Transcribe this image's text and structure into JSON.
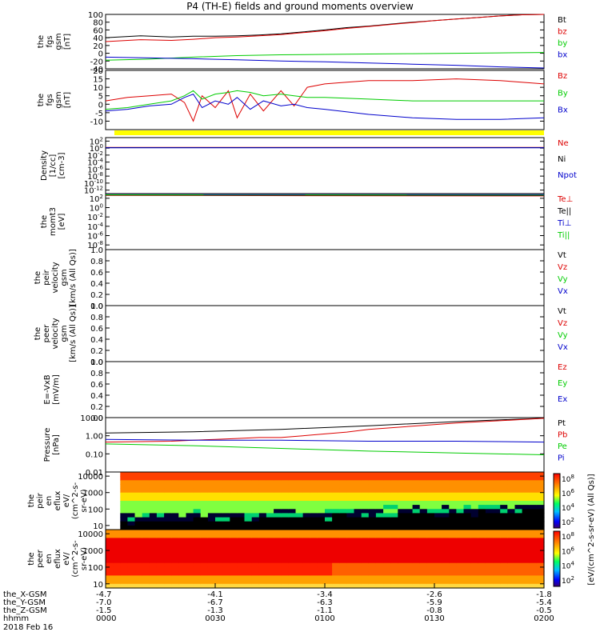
{
  "chart_data": {
    "type": "line",
    "title": "P4 (TH-E) fields and ground moments overview",
    "panels": [
      {
        "id": "fgs_gsm",
        "ylabel": [
          "the",
          "fgs",
          "gsm",
          "[nT]"
        ],
        "ylim": [
          -40,
          100
        ],
        "ticks": [
          "100",
          "80",
          "60",
          "40",
          "20",
          "0",
          "-20",
          "-40"
        ],
        "tick_values": [
          100,
          80,
          60,
          40,
          20,
          0,
          -20,
          -40
        ],
        "scale": "linear",
        "series": [
          {
            "name": "Bt",
            "color": "#000000",
            "x": [
              0,
              8,
              15,
              20,
              25,
              30,
              35,
              40,
              45,
              50,
              55,
              60,
              65,
              70,
              75,
              80,
              85,
              90,
              95,
              100
            ],
            "y": [
              40,
              45,
              42,
              44,
              44,
              45,
              47,
              50,
              55,
              60,
              66,
              70,
              75,
              80,
              84,
              88,
              92,
              96,
              99,
              100
            ]
          },
          {
            "name": "bz",
            "color": "#dd0000",
            "x": [
              0,
              8,
              15,
              20,
              25,
              30,
              35,
              40,
              45,
              50,
              55,
              60,
              65,
              70,
              75,
              80,
              85,
              90,
              95,
              100
            ],
            "y": [
              30,
              35,
              33,
              36,
              40,
              42,
              45,
              48,
              53,
              58,
              64,
              69,
              74,
              79,
              84,
              88,
              92,
              96,
              99,
              100
            ]
          },
          {
            "name": "by",
            "color": "#00cc00",
            "x": [
              0,
              10,
              20,
              30,
              40,
              50,
              60,
              70,
              80,
              90,
              100
            ],
            "y": [
              -18,
              -15,
              -10,
              -6,
              -4,
              -3,
              -2,
              -1,
              0,
              1,
              2
            ]
          },
          {
            "name": "bx",
            "color": "#0000cc",
            "x": [
              0,
              10,
              20,
              30,
              40,
              50,
              60,
              70,
              80,
              90,
              100
            ],
            "y": [
              -10,
              -12,
              -14,
              -17,
              -20,
              -22,
              -25,
              -28,
              -31,
              -35,
              -38
            ]
          }
        ]
      },
      {
        "id": "fgs_gsm_2",
        "ylabel": [
          "the",
          "fgs",
          "gsm",
          "[nT]"
        ],
        "ylim": [
          -15,
          20
        ],
        "ticks": [
          "20",
          "15",
          "10",
          "5",
          "0",
          "-5",
          "-10"
        ],
        "tick_values": [
          20,
          15,
          10,
          5,
          0,
          -5,
          -10
        ],
        "scale": "linear",
        "series": [
          {
            "name": "Bz",
            "color": "#dd0000",
            "x": [
              0,
              5,
              10,
              15,
              18,
              20,
              22,
              25,
              28,
              30,
              33,
              36,
              40,
              43,
              46,
              50,
              55,
              60,
              70,
              80,
              90,
              100
            ],
            "y": [
              2,
              4,
              5,
              6,
              1,
              -10,
              5,
              -2,
              8,
              -8,
              6,
              -4,
              8,
              -1,
              10,
              12,
              13,
              14,
              14,
              15,
              14,
              12
            ]
          },
          {
            "name": "By",
            "color": "#00cc00",
            "x": [
              0,
              5,
              10,
              15,
              18,
              20,
              22,
              25,
              28,
              30,
              33,
              36,
              40,
              43,
              46,
              50,
              60,
              70,
              80,
              90,
              100
            ],
            "y": [
              -3,
              -2,
              0,
              2,
              5,
              8,
              3,
              6,
              7,
              8,
              7,
              5,
              6,
              5,
              4,
              4,
              3,
              2,
              2,
              2,
              2
            ]
          },
          {
            "name": "Bx",
            "color": "#0000cc",
            "x": [
              0,
              5,
              10,
              15,
              18,
              20,
              22,
              25,
              28,
              30,
              33,
              36,
              40,
              43,
              46,
              50,
              60,
              70,
              80,
              90,
              100
            ],
            "y": [
              -4,
              -3,
              -1,
              0,
              4,
              6,
              -2,
              2,
              0,
              4,
              -3,
              2,
              -1,
              0,
              -2,
              -3,
              -6,
              -8,
              -9,
              -9,
              -8
            ]
          }
        ]
      },
      {
        "id": "density",
        "ylabel": [
          "Density",
          "[1/cc]",
          "[cm-3]"
        ],
        "ticks": [
          "10^2",
          "10^0",
          "10^-2",
          "10^-4",
          "10^-6",
          "10^-8",
          "10^-10",
          "10^-12"
        ],
        "tick_values": [
          2,
          0,
          -2,
          -4,
          -6,
          -8,
          -10,
          -12
        ],
        "ylim": [
          -13,
          3
        ],
        "scale": "log",
        "series": [
          {
            "name": "Ne",
            "color": "#dd0000",
            "x": [
              0,
              100
            ],
            "y": [
              0.2,
              0.2
            ]
          },
          {
            "name": "Ni",
            "color": "#000000",
            "x": [
              0,
              100
            ],
            "y": [
              0.15,
              0.15
            ]
          },
          {
            "name": "Npot",
            "color": "#0000cc",
            "x": [
              0,
              100
            ],
            "y": [
              0.1,
              0.1
            ]
          }
        ]
      },
      {
        "id": "temperature",
        "ylabel": [
          "the",
          "momt3",
          "[eV]"
        ],
        "ticks": [
          "10^2",
          "10^0",
          "10^-2",
          "10^-4",
          "10^-6",
          "10^-8"
        ],
        "tick_values": [
          2,
          0,
          -2,
          -4,
          -6,
          -8
        ],
        "ylim": [
          -9,
          3
        ],
        "scale": "log",
        "series": [
          {
            "name": "Te⊥",
            "color": "#dd0000",
            "x": [
              0,
              100
            ],
            "y": [
              2.6,
              2.5
            ]
          },
          {
            "name": "Te||",
            "color": "#000000",
            "x": [
              0,
              100
            ],
            "y": [
              2.7,
              2.6
            ]
          },
          {
            "name": "Ti⊥",
            "color": "#0000cc",
            "x": [
              0,
              100
            ],
            "y": [
              2.8,
              2.8
            ]
          },
          {
            "name": "Ti||",
            "color": "#00cc00",
            "x": [
              0,
              100
            ],
            "y": [
              2.75,
              2.7
            ]
          }
        ]
      },
      {
        "id": "peir_velocity",
        "ylabel": [
          "the",
          "peir",
          "velocity",
          "gsm",
          "[km/s (All Qs)]"
        ],
        "ylim": [
          0,
          1
        ],
        "ticks": [
          "1.0",
          "0.8",
          "0.6",
          "0.4",
          "0.2",
          "0.0"
        ],
        "tick_values": [
          1,
          0.8,
          0.6,
          0.4,
          0.2,
          0
        ],
        "scale": "linear",
        "legend": [
          [
            "Vt",
            "#000000"
          ],
          [
            "Vz",
            "#dd0000"
          ],
          [
            "Vy",
            "#00cc00"
          ],
          [
            "Vx",
            "#0000cc"
          ]
        ]
      },
      {
        "id": "peer_velocity",
        "ylabel": [
          "the",
          "peer",
          "velocity",
          "gsm",
          "[km/s (All Qs)]"
        ],
        "ylim": [
          0,
          1
        ],
        "ticks": [
          "1.0",
          "0.8",
          "0.6",
          "0.4",
          "0.2",
          "0.0"
        ],
        "tick_values": [
          1,
          0.8,
          0.6,
          0.4,
          0.2,
          0
        ],
        "scale": "linear",
        "legend": [
          [
            "Vt",
            "#000000"
          ],
          [
            "Vz",
            "#dd0000"
          ],
          [
            "Vy",
            "#00cc00"
          ],
          [
            "Vx",
            "#0000cc"
          ]
        ]
      },
      {
        "id": "efield",
        "ylabel": [
          "E=-VxB",
          "[mV/m]"
        ],
        "ylim": [
          0,
          1
        ],
        "ticks": [
          "1.0",
          "0.8",
          "0.6",
          "0.4",
          "0.2",
          "0.0"
        ],
        "tick_values": [
          1,
          0.8,
          0.6,
          0.4,
          0.2,
          0
        ],
        "scale": "linear",
        "legend": [
          [
            "Ez",
            "#dd0000"
          ],
          [
            "Ey",
            "#00cc00"
          ],
          [
            "Ex",
            "#0000cc"
          ]
        ]
      },
      {
        "id": "pressure",
        "ylabel": [
          "Pressure",
          "[nPa]"
        ],
        "ticks": [
          "10.00",
          "1.00",
          "0.10",
          "0.01"
        ],
        "tick_values": [
          1,
          0,
          -1,
          -2
        ],
        "ylim": [
          -2,
          1
        ],
        "scale": "log",
        "series": [
          {
            "name": "Pt",
            "color": "#000000",
            "x": [
              0,
              20,
              40,
              60,
              80,
              100
            ],
            "y": [
              0.15,
              0.22,
              0.35,
              0.55,
              0.78,
              0.97
            ]
          },
          {
            "name": "Pb",
            "color": "#dd0000",
            "x": [
              0,
              15,
              20,
              25,
              30,
              35,
              40,
              45,
              50,
              55,
              60,
              80,
              100
            ],
            "y": [
              -0.35,
              -0.3,
              -0.25,
              -0.2,
              -0.15,
              -0.1,
              -0.1,
              0.0,
              0.1,
              0.2,
              0.35,
              0.7,
              0.96
            ]
          },
          {
            "name": "Pe",
            "color": "#00cc00",
            "x": [
              0,
              20,
              40,
              60,
              80,
              100
            ],
            "y": [
              -0.45,
              -0.55,
              -0.7,
              -0.85,
              -0.95,
              -1.05
            ]
          },
          {
            "name": "Pi",
            "color": "#0000cc",
            "x": [
              0,
              20,
              40,
              60,
              80,
              100
            ],
            "y": [
              -0.2,
              -0.25,
              -0.25,
              -0.3,
              -0.3,
              -0.35
            ]
          }
        ]
      },
      {
        "id": "peir_eflux",
        "ylabel": [
          "the",
          "peir",
          "en",
          "eflux",
          "eV/",
          "(cm^2-s-",
          "sr-eV)"
        ],
        "ticks": [
          "10000",
          "1000",
          "100",
          "10"
        ],
        "tick_values": [
          4,
          3,
          2,
          1
        ],
        "ylim": [
          0.75,
          4.25
        ],
        "scale": "log",
        "type": "heatmap"
      },
      {
        "id": "peer_eflux",
        "ylabel": [
          "the",
          "peer",
          "en",
          "eflux",
          "eV/",
          "(cm^2-s-",
          "sr-eV)"
        ],
        "ticks": [
          "10000",
          "1000",
          "100",
          "10"
        ],
        "tick_values": [
          4,
          3,
          2,
          1
        ],
        "ylim": [
          0.75,
          4.25
        ],
        "scale": "log",
        "type": "heatmap"
      }
    ],
    "colorbar": {
      "label": "[eV/(cm^2-s-sr-eV) (All Qs)]",
      "ticks": [
        "10^8",
        "10^6",
        "10^4",
        "10^2"
      ]
    },
    "x_axis": {
      "xlim": [
        0,
        100
      ],
      "rows": [
        {
          "label": "the_X-GSM",
          "values": [
            "-4.7",
            "-4.1",
            "-3.4",
            "-2.6",
            "-1.8"
          ]
        },
        {
          "label": "the_Y-GSM",
          "values": [
            "-7.0",
            "-6.7",
            "-6.3",
            "-5.9",
            "-5.4"
          ]
        },
        {
          "label": "the_Z-GSM",
          "values": [
            "-1.5",
            "-1.3",
            "-1.1",
            "-0.8",
            "-0.5"
          ]
        },
        {
          "label": "hhmm",
          "values": [
            "0000",
            "0030",
            "0100",
            "0130",
            "0200"
          ]
        }
      ],
      "date": "2018 Feb 16"
    }
  }
}
